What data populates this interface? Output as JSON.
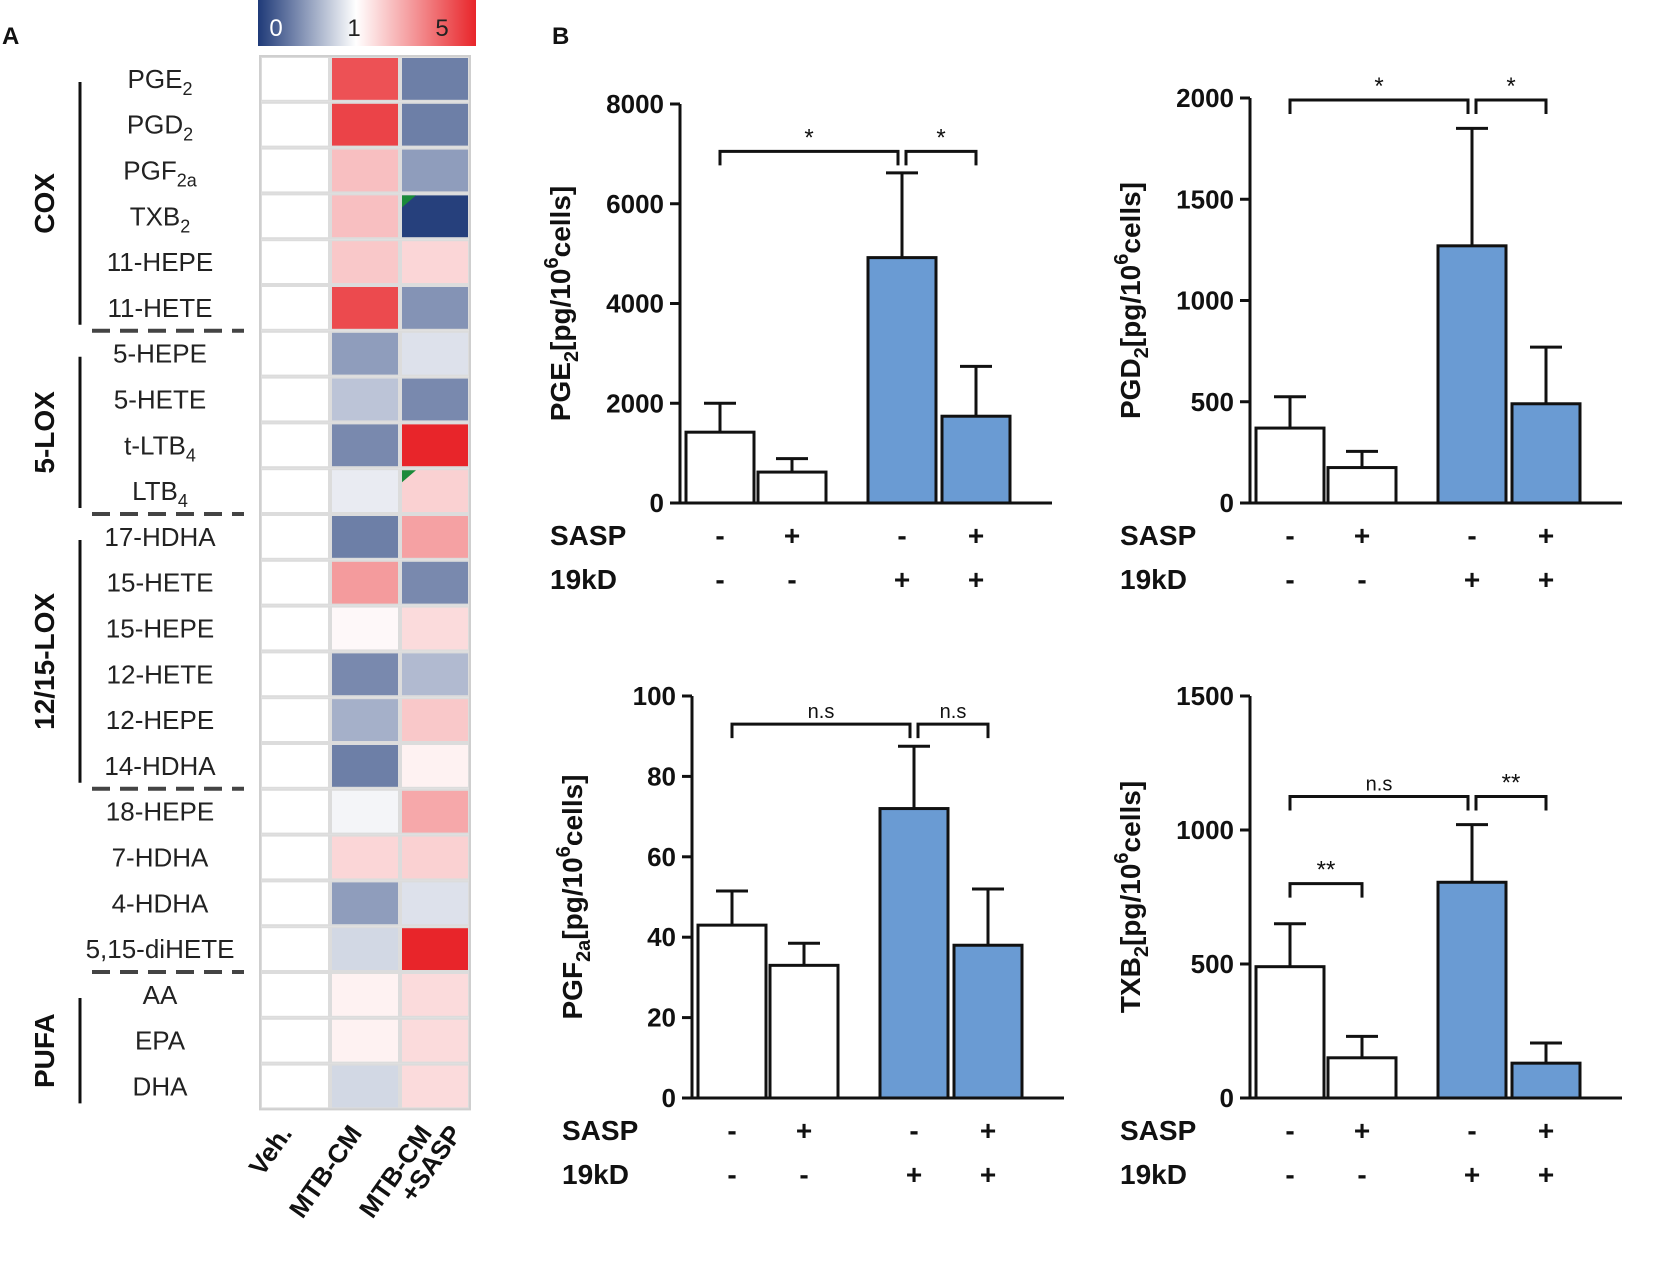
{
  "panel_labels": {
    "a": "A",
    "b": "B"
  },
  "colors": {
    "low": "#1f3a78",
    "mid": "#ffffff",
    "high": "#e8252a",
    "bar_treated": "#6a9bd3",
    "bar_control": "#ffffff",
    "tri": "#1a8a3a"
  },
  "chart_data": [
    {
      "type": "heatmap",
      "title": "",
      "colorbar": {
        "ticks": [
          "0",
          "1",
          "5"
        ],
        "values": [
          0,
          1,
          5
        ]
      },
      "columns": [
        "Veh.",
        "MTB-CM",
        "MTB-CM +SASP"
      ],
      "column_label_lines": [
        [
          "Veh."
        ],
        [
          "MTB-CM"
        ],
        [
          "MTB-CM",
          "+SASP"
        ]
      ],
      "groups": [
        {
          "name": "COX",
          "rows": [
            0,
            5
          ]
        },
        {
          "name": "5-LOX",
          "rows": [
            6,
            9
          ]
        },
        {
          "name": "12/15-LOX",
          "rows": [
            10,
            15
          ]
        },
        {
          "name": "PUFA",
          "rows": [
            20,
            22
          ]
        }
      ],
      "rows": [
        {
          "label": "PGE",
          "sub": "2",
          "values": [
            1,
            3.6,
            0.35
          ]
        },
        {
          "label": "PGD",
          "sub": "2",
          "values": [
            1,
            4.0,
            0.35
          ]
        },
        {
          "label": "PGF",
          "sub": "2a",
          "values": [
            1,
            1.6,
            0.5
          ]
        },
        {
          "label": "TXB",
          "sub": "2",
          "values": [
            1,
            1.6,
            0.03
          ]
        },
        {
          "label": "11-HEPE",
          "values": [
            1,
            1.5,
            1.35
          ]
        },
        {
          "label": "11-HETE",
          "values": [
            1,
            3.8,
            0.45
          ]
        },
        {
          "label": "5-HEPE",
          "values": [
            1,
            0.5,
            0.85
          ]
        },
        {
          "label": "5-HETE",
          "values": [
            1,
            0.7,
            0.4
          ]
        },
        {
          "label": "t-LTB",
          "sub": "4",
          "values": [
            1,
            0.4,
            5
          ]
        },
        {
          "label": "LTB",
          "sub": "4",
          "values": [
            1,
            0.9,
            1.4
          ]
        },
        {
          "label": "17-HDHA",
          "values": [
            1,
            0.35,
            2.0
          ]
        },
        {
          "label": "15-HETE",
          "values": [
            1,
            2.1,
            0.4
          ]
        },
        {
          "label": "15-HEPE",
          "values": [
            1,
            1.05,
            1.3
          ]
        },
        {
          "label": "12-HETE",
          "values": [
            1,
            0.4,
            0.65
          ]
        },
        {
          "label": "12-HEPE",
          "values": [
            1,
            0.6,
            1.5
          ]
        },
        {
          "label": "14-HDHA",
          "values": [
            1,
            0.35,
            1.1
          ]
        },
        {
          "label": "18-HEPE",
          "values": [
            1,
            0.95,
            1.9
          ]
        },
        {
          "label": "7-HDHA",
          "values": [
            1,
            1.35,
            1.4
          ]
        },
        {
          "label": "4-HDHA",
          "values": [
            1,
            0.5,
            0.85
          ]
        },
        {
          "label": "5,15-diHETE",
          "values": [
            1,
            0.8,
            5
          ]
        },
        {
          "label": "AA",
          "values": [
            1,
            1.1,
            1.3
          ]
        },
        {
          "label": "EPA",
          "values": [
            1,
            1.1,
            1.3
          ]
        },
        {
          "label": "DHA",
          "values": [
            1,
            0.8,
            1.3
          ]
        }
      ],
      "markers": [
        {
          "row": 3,
          "col": 2
        },
        {
          "row": 9,
          "col": 2
        }
      ]
    },
    {
      "type": "bar",
      "ylabel_main": "PGE",
      "ylabel_sub": "2",
      "ylabel_rest": "[pg/10",
      "ylabel_sup": "6",
      "ylabel_end": "cells]",
      "ylim": [
        0,
        8000
      ],
      "yticks": [
        0,
        2000,
        4000,
        6000,
        8000
      ],
      "values": [
        1420,
        620,
        4920,
        1740
      ],
      "errors": [
        580,
        270,
        1700,
        1000
      ],
      "fills": [
        "control",
        "control",
        "treated",
        "treated"
      ],
      "row_labels": [
        "SASP",
        "19kD"
      ],
      "sasp": [
        "-",
        "+",
        "-",
        "+"
      ],
      "kd": [
        "-",
        "-",
        "+",
        "+"
      ],
      "brackets": [
        {
          "from": 0,
          "to": 2,
          "label": "*",
          "level": 7050
        },
        {
          "from": 2,
          "to": 3,
          "label": "*",
          "level": 7050
        }
      ]
    },
    {
      "type": "bar",
      "ylabel_main": "PGD",
      "ylabel_sub": "2",
      "ylabel_rest": "[pg/10",
      "ylabel_sup": "6",
      "ylabel_end": "cells]",
      "ylim": [
        0,
        2000
      ],
      "yticks": [
        0,
        500,
        1000,
        1500,
        2000
      ],
      "values": [
        370,
        175,
        1270,
        490
      ],
      "errors": [
        155,
        80,
        580,
        280
      ],
      "fills": [
        "control",
        "control",
        "treated",
        "treated"
      ],
      "row_labels": [
        "SASP",
        "19kD"
      ],
      "sasp": [
        "-",
        "+",
        "-",
        "+"
      ],
      "kd": [
        "-",
        "-",
        "+",
        "+"
      ],
      "brackets": [
        {
          "from": 0,
          "to": 2,
          "label": "*",
          "level": 1990
        },
        {
          "from": 2,
          "to": 3,
          "label": "*",
          "level": 1990
        }
      ]
    },
    {
      "type": "bar",
      "ylabel_main": "PGF",
      "ylabel_sub": "2a",
      "ylabel_rest": "[pg/10",
      "ylabel_sup": "6",
      "ylabel_end": "cells]",
      "ylim": [
        0,
        100
      ],
      "yticks": [
        0,
        20,
        40,
        60,
        80,
        100
      ],
      "values": [
        43,
        33,
        72,
        38
      ],
      "errors": [
        8.5,
        5.5,
        15.5,
        14
      ],
      "fills": [
        "control",
        "control",
        "treated",
        "treated"
      ],
      "row_labels": [
        "SASP",
        "19kD"
      ],
      "sasp": [
        "-",
        "+",
        "-",
        "+"
      ],
      "kd": [
        "-",
        "-",
        "+",
        "+"
      ],
      "brackets": [
        {
          "from": 0,
          "to": 2,
          "label": "n.s",
          "level": 93
        },
        {
          "from": 2,
          "to": 3,
          "label": "n.s",
          "level": 93
        }
      ]
    },
    {
      "type": "bar",
      "ylabel_main": "TXB",
      "ylabel_sub": "2",
      "ylabel_rest": "[pg/10",
      "ylabel_sup": "6",
      "ylabel_end": "cells]",
      "ylim": [
        0,
        1500
      ],
      "yticks": [
        0,
        500,
        1000,
        1500
      ],
      "values": [
        490,
        150,
        805,
        130
      ],
      "errors": [
        160,
        80,
        215,
        75
      ],
      "fills": [
        "control",
        "control",
        "treated",
        "treated"
      ],
      "row_labels": [
        "SASP",
        "19kD"
      ],
      "sasp": [
        "-",
        "+",
        "-",
        "+"
      ],
      "kd": [
        "-",
        "-",
        "+",
        "+"
      ],
      "brackets": [
        {
          "from": 0,
          "to": 1,
          "label": "**",
          "level": 800
        },
        {
          "from": 0,
          "to": 2,
          "label": "n.s",
          "level": 1125
        },
        {
          "from": 2,
          "to": 3,
          "label": "**",
          "level": 1125
        }
      ]
    }
  ]
}
